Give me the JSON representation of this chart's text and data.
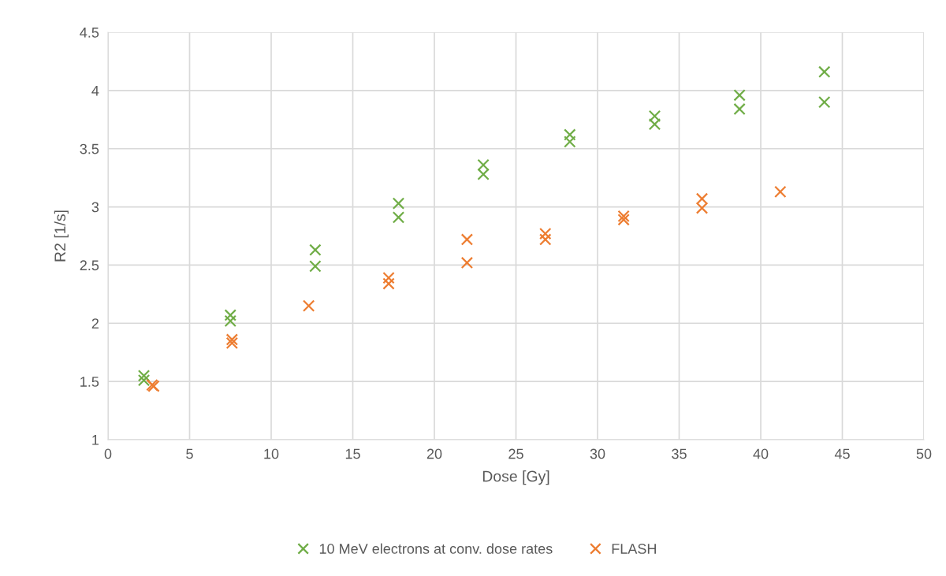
{
  "chart_data": {
    "type": "scatter",
    "xlabel": "Dose [Gy]",
    "ylabel": "R2 [1/s]",
    "xlim": [
      0,
      50
    ],
    "xticks": [
      0,
      5,
      10,
      15,
      20,
      25,
      30,
      35,
      40,
      45,
      50
    ],
    "ylim": [
      1,
      4.5
    ],
    "yticks": [
      1,
      1.5,
      2,
      2.5,
      3,
      3.5,
      4,
      4.5
    ],
    "grid": true,
    "legend": "bottom",
    "marker": "cross",
    "series": [
      {
        "name": "10 MeV electrons at conv. dose rates",
        "color": "#70ad47",
        "x": [
          2.2,
          2.2,
          7.5,
          7.5,
          12.7,
          12.7,
          17.8,
          17.8,
          23,
          23,
          28.3,
          28.3,
          33.5,
          33.5,
          38.7,
          38.7,
          43.9,
          43.9
        ],
        "values": [
          1.55,
          1.51,
          2.07,
          2.02,
          2.63,
          2.49,
          3.03,
          2.91,
          3.36,
          3.28,
          3.62,
          3.56,
          3.78,
          3.71,
          3.96,
          3.84,
          4.16,
          3.9
        ]
      },
      {
        "name": "FLASH",
        "color": "#ed7d31",
        "x": [
          2.7,
          2.8,
          7.6,
          7.6,
          12.3,
          17.2,
          17.2,
          22,
          22,
          26.8,
          26.8,
          31.6,
          31.6,
          36.4,
          36.4,
          41.2
        ],
        "values": [
          1.47,
          1.46,
          1.86,
          1.83,
          2.15,
          2.39,
          2.34,
          2.72,
          2.52,
          2.77,
          2.72,
          2.92,
          2.89,
          3.07,
          2.99,
          3.13
        ]
      }
    ]
  }
}
